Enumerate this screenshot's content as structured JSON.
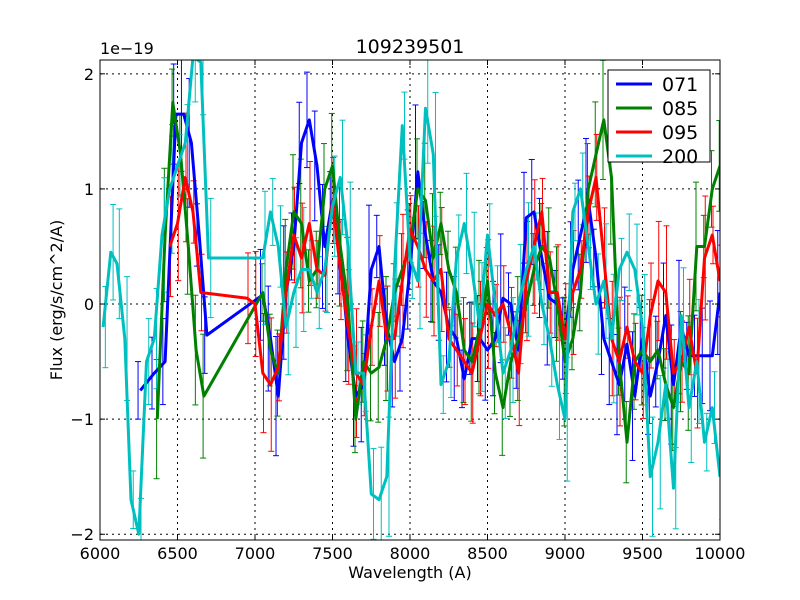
{
  "chart_data": {
    "type": "line",
    "title": "109239501",
    "xlabel": "Wavelength (A)",
    "ylabel": "Flux (erg/s/cm^2/A)",
    "y_offset_label": "1e−19",
    "xlim": [
      6000,
      10000
    ],
    "ylim": [
      -2.05,
      2.12
    ],
    "x_ticks": [
      6000,
      6500,
      7000,
      7500,
      8000,
      8500,
      9000,
      9500,
      10000
    ],
    "y_ticks": [
      -2,
      -1,
      0,
      1,
      2
    ],
    "y_tick_labels": [
      "−2",
      "−1",
      "0",
      "1",
      "2"
    ],
    "grid": true,
    "legend_position": "top-right",
    "series": [
      {
        "name": "071",
        "color": "#0000ff",
        "x": [
          6260,
          6350,
          6420,
          6490,
          6540,
          6590,
          6640,
          6690,
          7050,
          7100,
          7150,
          7200,
          7250,
          7300,
          7350,
          7400,
          7450,
          7500,
          7550,
          7600,
          7650,
          7700,
          7750,
          7800,
          7850,
          7900,
          7950,
          8000,
          8050,
          8100,
          8150,
          8200,
          8250,
          8300,
          8350,
          8400,
          8450,
          8500,
          8550,
          8600,
          8650,
          8700,
          8750,
          8800,
          8850,
          8900,
          8950,
          9000,
          9050,
          9100,
          9150,
          9200,
          9250,
          9300,
          9350,
          9400,
          9450,
          9500,
          9550,
          9600,
          9650,
          9700,
          9750,
          9800,
          9850,
          9900,
          9950,
          10000
        ],
        "values": [
          -0.75,
          -0.6,
          -0.5,
          1.65,
          1.65,
          1.4,
          0.6,
          -0.27,
          0.08,
          -0.3,
          -0.8,
          0.1,
          0.5,
          1.4,
          1.6,
          1.2,
          0.5,
          0.9,
          0.4,
          -0.3,
          -0.8,
          -0.7,
          0.3,
          0.5,
          -0.2,
          -0.5,
          -0.3,
          0.3,
          1.15,
          0.6,
          0.2,
          0.1,
          -0.2,
          -0.3,
          -0.65,
          -0.3,
          -0.3,
          -0.4,
          -0.3,
          0.05,
          0.0,
          -0.4,
          0.75,
          0.8,
          0.4,
          0.05,
          0.0,
          -0.3,
          0.3,
          0.6,
          0.9,
          0.4,
          -0.3,
          -0.5,
          -0.7,
          -0.35,
          -0.8,
          -0.3,
          -0.8,
          -0.5,
          -0.1,
          -0.7,
          -0.2,
          -0.45,
          -0.45,
          -0.45,
          -0.45,
          0.1
        ]
      },
      {
        "name": "085",
        "color": "#008000",
        "x": [
          6370,
          6420,
          6470,
          6520,
          6570,
          6620,
          6670,
          7050,
          7100,
          7150,
          7200,
          7250,
          7300,
          7350,
          7400,
          7450,
          7500,
          7550,
          7600,
          7650,
          7700,
          7750,
          7800,
          7850,
          7900,
          7950,
          8000,
          8050,
          8100,
          8150,
          8200,
          8250,
          8300,
          8350,
          8400,
          8450,
          8500,
          8550,
          8600,
          8650,
          8700,
          8750,
          8800,
          8850,
          8900,
          8950,
          9000,
          9050,
          9100,
          9150,
          9200,
          9250,
          9300,
          9350,
          9400,
          9450,
          9500,
          9550,
          9600,
          9650,
          9700,
          9750,
          9800,
          9850,
          9900,
          9950,
          10000
        ],
        "values": [
          -1.0,
          0.6,
          1.75,
          1.3,
          0.5,
          -0.4,
          -0.8,
          0.1,
          -0.4,
          -0.6,
          0.3,
          0.8,
          0.7,
          0.2,
          0.3,
          1.0,
          1.2,
          0.5,
          0.0,
          -1.0,
          -0.5,
          -0.6,
          -0.55,
          -0.3,
          0.1,
          0.3,
          0.5,
          1.0,
          0.9,
          0.4,
          0.7,
          0.3,
          0.1,
          -0.4,
          -0.5,
          -0.2,
          0.2,
          -0.6,
          -0.9,
          -0.5,
          -0.3,
          0.0,
          0.3,
          0.5,
          0.4,
          0.0,
          -0.5,
          -0.3,
          0.1,
          1.0,
          1.3,
          1.6,
          1.1,
          -0.5,
          -1.2,
          -0.5,
          -0.4,
          -0.5,
          -0.4,
          -0.7,
          -0.9,
          -0.5,
          -0.6,
          0.5,
          0.5,
          1.0,
          1.2
        ]
      },
      {
        "name": "095",
        "color": "#ff0000",
        "x": [
          6450,
          6500,
          6550,
          6600,
          6650,
          6950,
          7000,
          7050,
          7100,
          7150,
          7200,
          7250,
          7300,
          7350,
          7400,
          7450,
          7500,
          7550,
          7600,
          7650,
          7700,
          7750,
          7800,
          7850,
          7900,
          7950,
          8000,
          8050,
          8100,
          8150,
          8200,
          8250,
          8300,
          8350,
          8400,
          8450,
          8500,
          8550,
          8600,
          8650,
          8700,
          8750,
          8800,
          8850,
          8900,
          8950,
          9000,
          9050,
          9100,
          9150,
          9200,
          9250,
          9300,
          9350,
          9400,
          9450,
          9500,
          9550,
          9600,
          9650,
          9700,
          9750,
          9800,
          9850,
          9900,
          9950,
          10000
        ],
        "values": [
          0.5,
          0.7,
          1.1,
          0.8,
          0.1,
          0.05,
          0.0,
          -0.6,
          -0.7,
          -0.55,
          0.1,
          0.6,
          0.4,
          0.7,
          0.3,
          0.25,
          0.9,
          0.3,
          -0.2,
          -0.6,
          -0.7,
          -0.2,
          0.2,
          -0.3,
          -0.3,
          0.2,
          0.65,
          0.5,
          0.3,
          0.2,
          0.3,
          -0.3,
          -0.4,
          -0.5,
          -0.6,
          -0.3,
          0.0,
          -0.1,
          0.0,
          -0.25,
          -0.6,
          0.2,
          0.5,
          0.8,
          0.1,
          0.1,
          -0.3,
          0.1,
          0.3,
          0.8,
          1.1,
          0.4,
          -0.3,
          -0.5,
          -0.2,
          -0.5,
          -0.6,
          -0.1,
          0.2,
          0.1,
          -0.6,
          -0.5,
          -0.2,
          -0.6,
          0.4,
          0.6,
          0.2
        ]
      },
      {
        "name": "200",
        "color": "#00bfbf",
        "x": [
          6020,
          6070,
          6110,
          6160,
          6200,
          6250,
          6300,
          6350,
          6400,
          6450,
          6500,
          6550,
          6600,
          6650,
          6700,
          7050,
          7100,
          7150,
          7200,
          7250,
          7300,
          7350,
          7400,
          7450,
          7500,
          7550,
          7600,
          7650,
          7700,
          7750,
          7800,
          7850,
          7900,
          7950,
          8000,
          8050,
          8100,
          8150,
          8200,
          8250,
          8300,
          8350,
          8400,
          8450,
          8500,
          8550,
          8600,
          8650,
          8700,
          8750,
          8800,
          8850,
          8900,
          8950,
          9000,
          9050,
          9100,
          9150,
          9200,
          9250,
          9300,
          9350,
          9400,
          9450,
          9500,
          9550,
          9600,
          9650,
          9700,
          9750,
          9800,
          9850,
          9900,
          9950,
          10000
        ],
        "values": [
          -0.2,
          0.45,
          0.35,
          -0.3,
          -1.7,
          -2.0,
          -0.5,
          -0.3,
          0.6,
          1.0,
          1.2,
          1.4,
          2.15,
          2.1,
          0.4,
          0.4,
          0.8,
          0.5,
          -0.2,
          0.1,
          0.3,
          0.3,
          0.1,
          0.3,
          0.85,
          1.1,
          0.5,
          -0.6,
          -0.6,
          -1.65,
          -1.7,
          -1.5,
          0.3,
          1.55,
          0.4,
          0.2,
          1.7,
          1.3,
          -0.7,
          -0.5,
          0.4,
          0.7,
          0.3,
          -0.2,
          0.6,
          0.0,
          -0.6,
          -0.4,
          0.0,
          0.3,
          0.5,
          0.0,
          -0.3,
          -0.7,
          -1.0,
          0.8,
          1.0,
          0.5,
          0.0,
          0.2,
          -0.3,
          0.3,
          0.45,
          0.3,
          -0.2,
          -1.5,
          -1.2,
          -0.7,
          -1.6,
          -0.1,
          -0.9,
          -0.5,
          -1.2,
          -0.9,
          -1.5
        ]
      }
    ]
  }
}
